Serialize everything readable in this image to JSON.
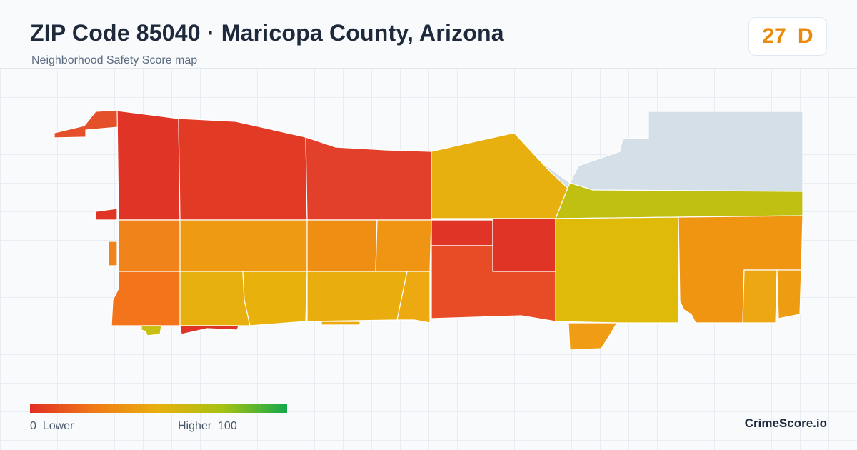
{
  "header": {
    "title": "ZIP Code 85040 · Maricopa County, Arizona",
    "subtitle": "Neighborhood Safety Score map"
  },
  "score": {
    "value": "27",
    "grade": "D",
    "color": "#ea8a0c"
  },
  "map": {
    "background_color": "#f8fafc",
    "grid_color": "#e7edf3",
    "no_data_color": "#d5dfe8",
    "zones": [
      {
        "id": "nw-strip",
        "score": 16,
        "color": "#e3502a"
      },
      {
        "id": "n-1",
        "score": 10,
        "color": "#df3426"
      },
      {
        "id": "n-2",
        "score": 12,
        "color": "#e13a25"
      },
      {
        "id": "n-3",
        "score": 13,
        "color": "#e2402a"
      },
      {
        "id": "n-4",
        "score": 48,
        "color": "#e8b00e"
      },
      {
        "id": "no-data",
        "score": null,
        "color": "#d5dfe8"
      },
      {
        "id": "ne-band",
        "score": 62,
        "color": "#c0c012"
      },
      {
        "id": "m-1",
        "score": 32,
        "color": "#f0841a"
      },
      {
        "id": "m-2",
        "score": 40,
        "color": "#ee9a12"
      },
      {
        "id": "m-3",
        "score": 36,
        "color": "#ee8f14"
      },
      {
        "id": "m-4",
        "score": 38,
        "color": "#f09414"
      },
      {
        "id": "m-5",
        "score": 10,
        "color": "#df3426"
      },
      {
        "id": "m-6",
        "score": 10,
        "color": "#df3426"
      },
      {
        "id": "e-1",
        "score": 55,
        "color": "#dfba08"
      },
      {
        "id": "e-2",
        "score": 40,
        "color": "#ef9512"
      },
      {
        "id": "s-1",
        "score": 28,
        "color": "#f4741c"
      },
      {
        "id": "s-2",
        "score": 50,
        "color": "#e8b00e"
      },
      {
        "id": "s-3",
        "score": 50,
        "color": "#e8b10c"
      },
      {
        "id": "s-4",
        "score": 48,
        "color": "#eaad0e"
      },
      {
        "id": "s-5",
        "score": 46,
        "color": "#ecaa10"
      },
      {
        "id": "s-6",
        "score": 18,
        "color": "#e84c26"
      },
      {
        "id": "se-1",
        "score": 42,
        "color": "#f09c14"
      },
      {
        "id": "se-2",
        "score": 45,
        "color": "#eca712"
      },
      {
        "id": "se-3",
        "score": 42,
        "color": "#ee9c12"
      },
      {
        "id": "sw-1",
        "score": 62,
        "color": "#c8bf14"
      },
      {
        "id": "sw-2",
        "score": 10,
        "color": "#df3426"
      }
    ]
  },
  "legend": {
    "min_label": "0",
    "min_text": "Lower",
    "max_text": "Higher",
    "max_label": "100",
    "gradient_colors": [
      "#e02e24",
      "#f07a18",
      "#e8b00e",
      "#a6c212",
      "#14a84c"
    ]
  },
  "brand": {
    "name": "CrimeScore.io"
  }
}
